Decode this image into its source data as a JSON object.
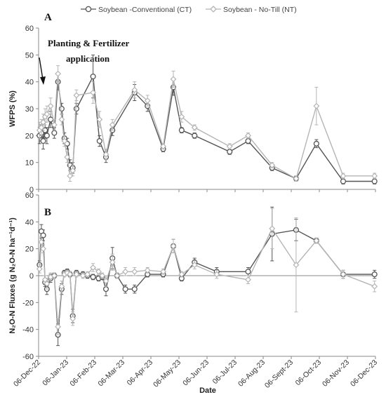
{
  "chart_data": {
    "type": "line",
    "legend": {
      "placement": "top",
      "entries": [
        "Soybean -Conventional (CT)",
        "Soybean - No-Till (NT)"
      ]
    },
    "colors": {
      "ct": "#555555",
      "nt": "#b5b5b5"
    },
    "xlabel": "Date",
    "x_ticks": [
      "06-Dec-22",
      "06-Jan-23",
      "06-Feb-23",
      "06-Mar-23",
      "06-Apr-23",
      "06-May-23",
      "06-Jun-23",
      "06-Jul-23",
      "06-Aug-23",
      "06-Sept-23",
      "06-Oct-23",
      "06-Nov-23",
      "06-Dec-23"
    ],
    "x_range": [
      "2022-12-06",
      "2023-12-06"
    ],
    "panels": [
      {
        "label": "A",
        "ylabel": "WFPS (%)",
        "ylim": [
          0,
          60
        ],
        "yticks": [
          0,
          10,
          20,
          30,
          40,
          50,
          60
        ],
        "annotation": [
          "Planting & Fertilizer",
          "application"
        ],
        "series": [
          {
            "name": "Soybean -Conventional (CT)",
            "x": [
              "2022-12-07",
              "2022-12-09",
              "2022-12-11",
              "2022-12-13",
              "2022-12-15",
              "2022-12-19",
              "2022-12-23",
              "2022-12-27",
              "2022-12-31",
              "2023-01-03",
              "2023-01-06",
              "2023-01-09",
              "2023-01-12",
              "2023-01-16",
              "2023-02-03",
              "2023-02-10",
              "2023-02-17",
              "2023-02-24",
              "2023-03-20",
              "2023-04-03",
              "2023-04-20",
              "2023-05-01",
              "2023-05-10",
              "2023-05-24",
              "2023-07-01",
              "2023-07-21",
              "2023-08-16",
              "2023-09-11",
              "2023-10-03",
              "2023-11-01",
              "2023-12-05"
            ],
            "y": [
              20,
              21,
              18,
              22,
              20,
              26,
              21,
              40,
              30,
              19,
              17,
              9,
              8,
              30,
              42,
              18,
              12,
              22,
              36,
              31,
              15,
              38,
              22,
              20,
              14,
              18,
              8,
              4,
              17,
              3,
              3
            ],
            "err": [
              3,
              3,
              3,
              3,
              3,
              3,
              2,
              3,
              2,
              2,
              2,
              2,
              2,
              2,
              8,
              2,
              2,
              2,
              3,
              2,
              1,
              3,
              1,
              1,
              1,
              1,
              1,
              1,
              1.5,
              1,
              1
            ]
          },
          {
            "name": "Soybean - No-Till (NT)",
            "x": [
              "2022-12-07",
              "2022-12-09",
              "2022-12-11",
              "2022-12-13",
              "2022-12-15",
              "2022-12-19",
              "2022-12-23",
              "2022-12-27",
              "2022-12-31",
              "2023-01-03",
              "2023-01-06",
              "2023-01-09",
              "2023-01-12",
              "2023-01-16",
              "2023-02-03",
              "2023-02-10",
              "2023-02-17",
              "2023-02-24",
              "2023-03-20",
              "2023-04-03",
              "2023-04-20",
              "2023-05-01",
              "2023-05-10",
              "2023-05-24",
              "2023-07-01",
              "2023-07-21",
              "2023-08-16",
              "2023-09-11",
              "2023-10-03",
              "2023-11-01",
              "2023-12-05"
            ],
            "y": [
              22,
              23,
              25,
              27,
              28,
              31,
              24,
              43,
              26,
              18,
              12,
              5,
              7,
              35,
              36,
              26,
              13,
              24,
              37,
              33,
              16,
              41,
              27,
              23,
              16,
              20,
              9,
              4,
              31,
              5,
              5
            ],
            "err": [
              3,
              3,
              3,
              3,
              3,
              3,
              2,
              3,
              2,
              2,
              2,
              2,
              2,
              2,
              4,
              3,
              2,
              2,
              3,
              2,
              1,
              3,
              2,
              1,
              1,
              1,
              1,
              1,
              7,
              1,
              1
            ]
          }
        ]
      },
      {
        "label": "B",
        "ylabel": "N₂O-N Fluxes (g N₂O-N ha⁻¹d⁻¹)",
        "ylim": [
          -60,
          60
        ],
        "yticks": [
          -60,
          -40,
          -20,
          0,
          20,
          40,
          60
        ],
        "series": [
          {
            "name": "Soybean -Conventional (CT)",
            "x": [
              "2022-12-07",
              "2022-12-09",
              "2022-12-11",
              "2022-12-13",
              "2022-12-15",
              "2022-12-19",
              "2022-12-23",
              "2022-12-27",
              "2022-12-31",
              "2023-01-03",
              "2023-01-06",
              "2023-01-09",
              "2023-01-12",
              "2023-01-16",
              "2023-01-23",
              "2023-01-28",
              "2023-02-03",
              "2023-02-09",
              "2023-02-13",
              "2023-02-17",
              "2023-02-24",
              "2023-03-01",
              "2023-03-10",
              "2023-03-20",
              "2023-04-03",
              "2023-04-20",
              "2023-05-01",
              "2023-05-10",
              "2023-05-24",
              "2023-06-17",
              "2023-07-21",
              "2023-08-16",
              "2023-09-11",
              "2023-10-03",
              "2023-11-01",
              "2023-12-05"
            ],
            "y": [
              8,
              33,
              30,
              -5,
              -10,
              -2,
              0,
              -44,
              -10,
              2,
              3,
              1,
              -30,
              2,
              1,
              0,
              -1,
              -2,
              -1,
              -10,
              13,
              0,
              -10,
              -10,
              1,
              1,
              22,
              -2,
              10,
              3,
              3,
              31,
              34,
              26,
              1,
              1
            ],
            "err": [
              3,
              5,
              4,
              3,
              4,
              3,
              2,
              8,
              4,
              2,
              2,
              2,
              5,
              2,
              2,
              2,
              2,
              2,
              2,
              5,
              8,
              2,
              3,
              3,
              2,
              2,
              5,
              2,
              3,
              3,
              3,
              20,
              8,
              2,
              3,
              3
            ]
          },
          {
            "name": "Soybean - No-Till (NT)",
            "x": [
              "2022-12-07",
              "2022-12-09",
              "2022-12-11",
              "2022-12-13",
              "2022-12-15",
              "2022-12-19",
              "2022-12-23",
              "2022-12-27",
              "2022-12-31",
              "2023-01-03",
              "2023-01-06",
              "2023-01-09",
              "2023-01-12",
              "2023-01-16",
              "2023-01-23",
              "2023-01-28",
              "2023-02-03",
              "2023-02-09",
              "2023-02-13",
              "2023-02-17",
              "2023-02-24",
              "2023-03-01",
              "2023-03-10",
              "2023-03-20",
              "2023-04-03",
              "2023-04-20",
              "2023-05-01",
              "2023-05-10",
              "2023-05-24",
              "2023-06-17",
              "2023-07-21",
              "2023-08-16",
              "2023-09-11",
              "2023-10-03",
              "2023-11-01",
              "2023-12-05"
            ],
            "y": [
              5,
              25,
              20,
              -3,
              -6,
              -1,
              0,
              -38,
              -8,
              1,
              2,
              1,
              -32,
              1,
              0,
              1,
              6,
              3,
              0,
              -4,
              10,
              0,
              3,
              3,
              4,
              3,
              22,
              1,
              8,
              1,
              -3,
              35,
              8,
              26,
              1,
              -8
            ],
            "err": [
              3,
              4,
              3,
              3,
              4,
              3,
              2,
              6,
              4,
              2,
              2,
              2,
              5,
              2,
              2,
              2,
              3,
              2,
              2,
              4,
              6,
              2,
              3,
              3,
              2,
              2,
              5,
              2,
              3,
              3,
              3,
              15,
              35,
              2,
              3,
              4
            ]
          }
        ]
      }
    ]
  }
}
